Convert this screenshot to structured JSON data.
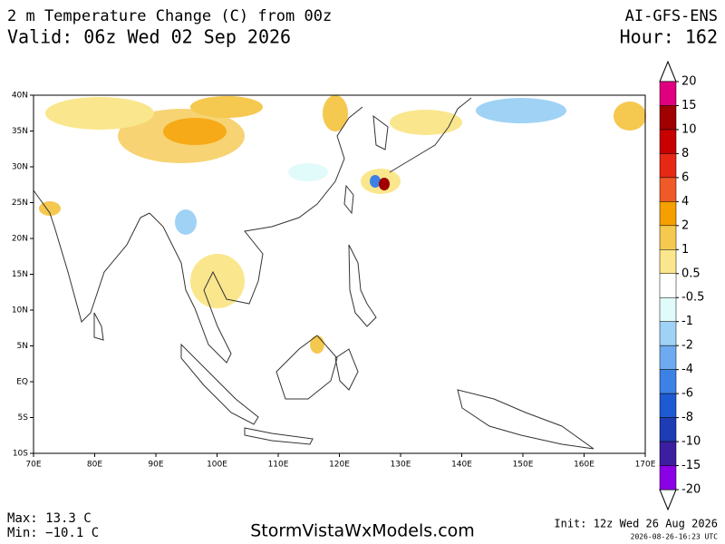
{
  "header": {
    "title": "2 m Temperature Change (C) from 00z",
    "valid": "Valid: 06z Wed 02 Sep 2026",
    "model": "AI-GFS-ENS",
    "hour": "Hour: 162"
  },
  "map": {
    "xlim": [
      70,
      170
    ],
    "ylim": [
      -10,
      40
    ],
    "xticks": [
      {
        "value": 70,
        "label": "70E"
      },
      {
        "value": 80,
        "label": "80E"
      },
      {
        "value": 90,
        "label": "90E"
      },
      {
        "value": 100,
        "label": "100E"
      },
      {
        "value": 110,
        "label": "110E"
      },
      {
        "value": 120,
        "label": "120E"
      },
      {
        "value": 130,
        "label": "130E"
      },
      {
        "value": 140,
        "label": "140E"
      },
      {
        "value": 150,
        "label": "150E"
      },
      {
        "value": 160,
        "label": "160E"
      },
      {
        "value": 170,
        "label": "170E"
      }
    ],
    "yticks": [
      {
        "value": -10,
        "label": "10S"
      },
      {
        "value": -5,
        "label": "5S"
      },
      {
        "value": 0,
        "label": "EQ"
      },
      {
        "value": 5,
        "label": "5N"
      },
      {
        "value": 10,
        "label": "10N"
      },
      {
        "value": 15,
        "label": "15N"
      },
      {
        "value": 20,
        "label": "20N"
      },
      {
        "value": 25,
        "label": "25N"
      },
      {
        "value": 30,
        "label": "30N"
      },
      {
        "value": 35,
        "label": "35N"
      },
      {
        "value": 40,
        "label": "40N"
      }
    ]
  },
  "colorbar": {
    "levels": [
      20,
      15,
      10,
      8,
      6,
      4,
      2,
      1,
      0.5,
      -0.5,
      -1,
      -2,
      -4,
      -6,
      -8,
      -10,
      -15,
      -20
    ],
    "colors": [
      "#e0007f",
      "#a00000",
      "#c80000",
      "#e62814",
      "#f05a28",
      "#f5a000",
      "#f5c850",
      "#fae68c",
      "#ffffff",
      "#e1fafa",
      "#a0d2f5",
      "#6eaaf0",
      "#3c82e6",
      "#1e5ad2",
      "#1e3cb4",
      "#3c1ea0",
      "#8c00e6"
    ]
  },
  "footer": {
    "max": "Max: 13.3 C",
    "min": "Min: −10.1 C",
    "site": "StormVistaWxModels.com",
    "init": "Init: 12z Wed 26 Aug 2026",
    "stamp": "2026-08-26-16:23 UTC"
  }
}
